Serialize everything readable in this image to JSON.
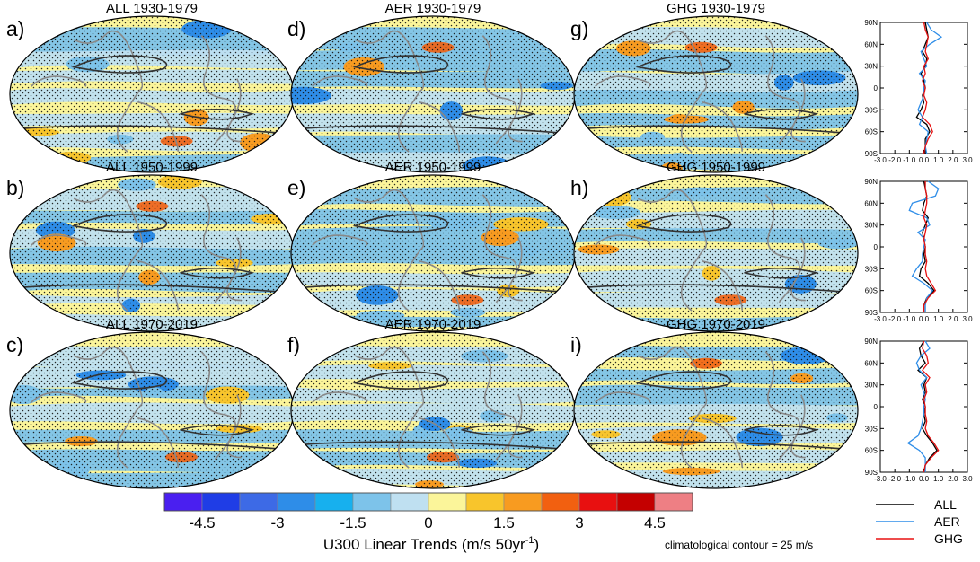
{
  "figure": {
    "colorbar": {
      "colors": [
        "#4a1ff0",
        "#1f3de6",
        "#3d6ae6",
        "#2e8de8",
        "#17b0ee",
        "#7dc3ea",
        "#bfe0f1",
        "#fbf59a",
        "#f8c52c",
        "#f89b20",
        "#f26010",
        "#e81010",
        "#c40000",
        "#ee7f84"
      ],
      "tick_labels": [
        "-4.5",
        "-3",
        "-1.5",
        "0",
        "1.5",
        "3",
        "4.5"
      ],
      "title": "U300 Linear Trends (m/s 50yr",
      "title_sup": "-1",
      "title_end": ")"
    },
    "note": "climatological contour = 25 m/s",
    "panels": [
      {
        "label": "a)",
        "title": "ALL 1930-1979"
      },
      {
        "label": "b)",
        "title": "ALL 1950-1999"
      },
      {
        "label": "c)",
        "title": "ALL 1970-2019"
      },
      {
        "label": "d)",
        "title": "AER 1930-1979"
      },
      {
        "label": "e)",
        "title": "AER 1950-1999"
      },
      {
        "label": "f)",
        "title": "AER 1970-2019"
      },
      {
        "label": "g)",
        "title": "GHG 1930-1979"
      },
      {
        "label": "h)",
        "title": "GHG 1950-1999"
      },
      {
        "label": "i)",
        "title": "GHG 1970-2019"
      }
    ],
    "map_colors": {
      "ocean_base": "#fbf59a",
      "coast": "#888888",
      "contour": "#333333",
      "stipple": "#111111"
    }
  },
  "chart_data": {
    "type": "line",
    "description_free": true,
    "profile_axes": {
      "y_ticks": [
        "90N",
        "60N",
        "30N",
        "0",
        "30S",
        "60S",
        "90S"
      ],
      "y_range": [
        -90,
        90
      ],
      "x_ticks": [
        "-3.0",
        "-2.0",
        "-1.0",
        "0.0",
        "1.0",
        "2.0",
        "3.0"
      ],
      "x_range": [
        -3,
        3
      ]
    },
    "legend": [
      {
        "name": "ALL",
        "color": "#000000"
      },
      {
        "name": "AER",
        "color": "#2e8de8"
      },
      {
        "name": "GHG",
        "color": "#e81010"
      }
    ],
    "profiles": [
      {
        "period": "1930-1979",
        "lat": [
          90,
          80,
          70,
          60,
          50,
          40,
          30,
          20,
          10,
          0,
          -10,
          -20,
          -30,
          -40,
          -50,
          -60,
          -70,
          -80,
          -90
        ],
        "series": [
          {
            "name": "ALL",
            "values": [
              0.1,
              0.2,
              0.3,
              0.1,
              -0.1,
              0.2,
              0.1,
              -0.2,
              0.0,
              0.1,
              -0.1,
              0.0,
              -0.2,
              -0.5,
              0.2,
              0.4,
              0.1,
              0.1,
              0.1
            ]
          },
          {
            "name": "AER",
            "values": [
              0.2,
              0.5,
              1.2,
              0.4,
              -0.2,
              0.0,
              0.2,
              -0.3,
              0.1,
              0.0,
              0.0,
              -0.2,
              -0.4,
              -0.1,
              -0.3,
              0.3,
              0.2,
              0.1,
              0.2
            ]
          },
          {
            "name": "GHG",
            "values": [
              0.0,
              0.1,
              0.3,
              0.2,
              0.1,
              0.3,
              0.0,
              0.1,
              -0.1,
              0.1,
              0.0,
              0.2,
              0.1,
              -0.1,
              0.4,
              0.6,
              0.3,
              0.1,
              0.0
            ]
          }
        ]
      },
      {
        "period": "1950-1999",
        "lat": [
          90,
          80,
          70,
          60,
          50,
          40,
          30,
          20,
          10,
          0,
          -10,
          -20,
          -30,
          -40,
          -50,
          -60,
          -70,
          -80,
          -90
        ],
        "series": [
          {
            "name": "ALL",
            "values": [
              0.0,
              0.1,
              0.2,
              0.0,
              -0.1,
              0.3,
              0.1,
              -0.1,
              0.0,
              0.1,
              0.0,
              0.1,
              -0.2,
              -0.3,
              0.3,
              0.7,
              0.2,
              0.0,
              0.0
            ]
          },
          {
            "name": "AER",
            "values": [
              0.3,
              1.0,
              0.8,
              -0.8,
              -1.0,
              0.2,
              0.4,
              -0.4,
              0.1,
              0.0,
              -0.1,
              -0.1,
              -0.5,
              -0.8,
              0.0,
              0.6,
              0.2,
              0.1,
              0.1
            ]
          },
          {
            "name": "GHG",
            "values": [
              0.1,
              0.1,
              0.2,
              0.2,
              0.1,
              0.0,
              0.2,
              0.1,
              0.0,
              0.1,
              0.1,
              0.2,
              0.1,
              0.2,
              0.5,
              0.8,
              0.3,
              0.0,
              0.0
            ]
          }
        ]
      },
      {
        "period": "1970-2019",
        "lat": [
          90,
          80,
          70,
          60,
          50,
          40,
          30,
          20,
          10,
          0,
          -10,
          -20,
          -30,
          -40,
          -50,
          -60,
          -70,
          -80,
          -90
        ],
        "series": [
          {
            "name": "ALL",
            "values": [
              0.0,
              -0.3,
              -0.2,
              0.1,
              -0.4,
              0.2,
              0.0,
              0.1,
              -0.1,
              0.1,
              0.0,
              0.1,
              -0.1,
              0.2,
              0.6,
              0.9,
              0.4,
              0.1,
              0.0
            ]
          },
          {
            "name": "AER",
            "values": [
              0.1,
              0.4,
              -0.2,
              -0.5,
              -0.3,
              0.2,
              -0.2,
              0.0,
              0.1,
              0.0,
              0.0,
              -0.1,
              -0.2,
              -0.4,
              -1.1,
              -0.3,
              0.1,
              0.1,
              0.1
            ]
          },
          {
            "name": "GHG",
            "values": [
              0.0,
              -0.1,
              0.2,
              0.3,
              -0.1,
              0.4,
              0.1,
              0.2,
              0.0,
              0.1,
              0.1,
              0.2,
              0.1,
              0.3,
              0.7,
              1.0,
              0.5,
              0.1,
              0.0
            ]
          }
        ]
      }
    ]
  }
}
